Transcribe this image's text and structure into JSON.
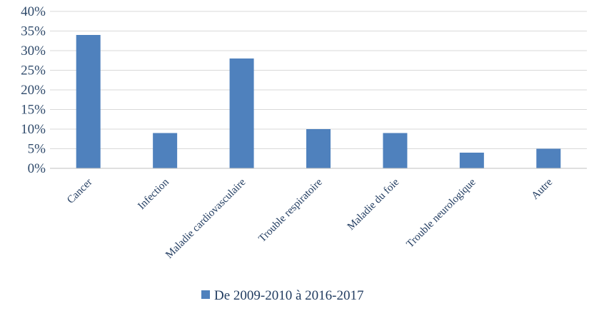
{
  "chart_data": {
    "type": "bar",
    "categories": [
      "Cancer",
      "Infection",
      "Maladie cardiovasculaire",
      "Trouble respiratoire",
      "Maladie du foie",
      "Trouble neurologique",
      "Autre"
    ],
    "series": [
      {
        "name": "De 2009-2010 à 2016-2017",
        "values": [
          34,
          9,
          28,
          10,
          9,
          4,
          5
        ],
        "color": "#4f81bd"
      }
    ],
    "yticks": [
      "0%",
      "5%",
      "10%",
      "15%",
      "20%",
      "25%",
      "30%",
      "35%",
      "40%"
    ],
    "ylim": [
      0,
      40
    ],
    "grid": true,
    "legend": "bottom"
  }
}
